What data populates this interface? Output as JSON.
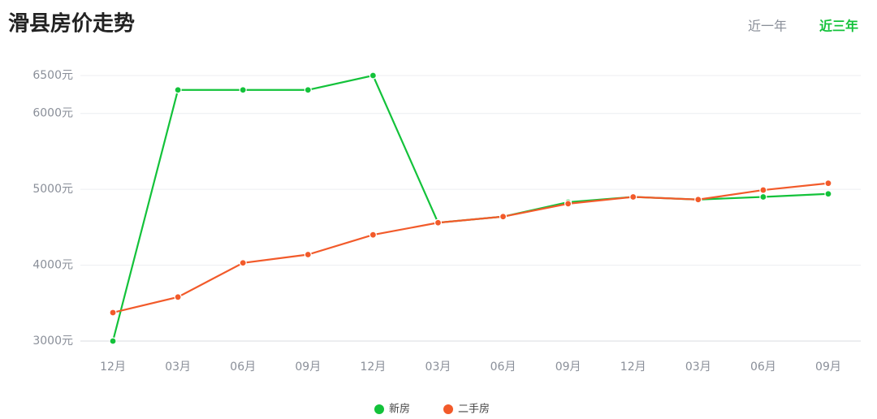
{
  "chart_data": {
    "type": "line",
    "title": "滑县房价走势",
    "tabs": [
      "近一年",
      "近三年"
    ],
    "categories": [
      "12月",
      "03月",
      "06月",
      "09月",
      "12月",
      "03月",
      "06月",
      "09月",
      "12月",
      "03月",
      "06月",
      "09月"
    ],
    "series": [
      {
        "name": "新房",
        "color": "#13c23a",
        "values": [
          3000,
          6310,
          6310,
          6310,
          6500,
          4560,
          4640,
          4830,
          4900,
          4865,
          4900,
          4940
        ]
      },
      {
        "name": "二手房",
        "color": "#f25a2a",
        "values": [
          3375,
          3580,
          4030,
          4140,
          4400,
          4560,
          4640,
          4810,
          4900,
          4865,
          4990,
          5080
        ]
      }
    ],
    "ylim": [
      3000,
      6500
    ],
    "yticks": [
      {
        "value": 3000,
        "label": "3000元"
      },
      {
        "value": 4000,
        "label": "4000元"
      },
      {
        "value": 5000,
        "label": "5000元"
      },
      {
        "value": 6000,
        "label": "6000元"
      },
      {
        "value": 6500,
        "label": "6500元"
      }
    ],
    "grid": true
  }
}
